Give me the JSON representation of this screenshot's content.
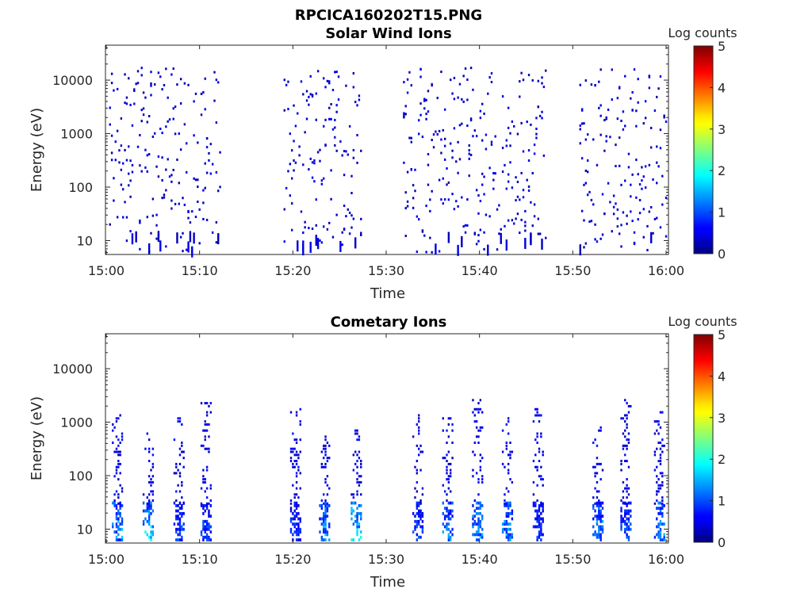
{
  "figure": {
    "title": "RPCICA160202T15.PNG"
  },
  "chart_data": [
    {
      "type": "heatmap",
      "title": "Solar Wind Ions",
      "xlabel": "Time",
      "ylabel": "Energy (eV)",
      "x_ticks": [
        "15:00",
        "15:10",
        "15:20",
        "15:30",
        "15:40",
        "15:50",
        "16:00"
      ],
      "x_range": [
        "15:00",
        "16:00"
      ],
      "y_ticks": [
        "10",
        "100",
        "1000",
        "10000"
      ],
      "y_scale": "log",
      "y_range": [
        5.5,
        45000
      ],
      "colorbar": {
        "label": "Log counts",
        "ticks": [
          "0",
          "1",
          "2",
          "3",
          "4",
          "5"
        ],
        "range": [
          0,
          5
        ],
        "colormap": "jet"
      },
      "active_intervals_minutes": [
        [
          0.3,
          12.2
        ],
        [
          19.0,
          27.2
        ],
        [
          31.8,
          47.2
        ],
        [
          50.7,
          60.0
        ]
      ],
      "energy_extent_eV": [
        6,
        17000
      ],
      "typical_log_counts": [
        0.2,
        0.6
      ]
    },
    {
      "type": "heatmap",
      "title": "Cometary Ions",
      "xlabel": "Time",
      "ylabel": "Energy (eV)",
      "x_ticks": [
        "15:00",
        "15:10",
        "15:20",
        "15:30",
        "15:40",
        "15:50",
        "16:00"
      ],
      "x_range": [
        "15:00",
        "16:00"
      ],
      "y_ticks": [
        "10",
        "100",
        "1000",
        "10000"
      ],
      "y_scale": "log",
      "y_range": [
        5.5,
        45000
      ],
      "colorbar": {
        "label": "Log counts",
        "ticks": [
          "0",
          "1",
          "2",
          "3",
          "4",
          "5"
        ],
        "range": [
          0,
          5
        ],
        "colormap": "jet"
      },
      "bursts": [
        {
          "t": 1.2,
          "top": 1600,
          "log_counts_low": 1.5
        },
        {
          "t": 4.5,
          "top": 900,
          "log_counts_low": 1.8
        },
        {
          "t": 7.8,
          "top": 1200,
          "log_counts_low": 1.0
        },
        {
          "t": 10.7,
          "top": 2300,
          "log_counts_low": 1.0
        },
        {
          "t": 20.3,
          "top": 1900,
          "log_counts_low": 1.0
        },
        {
          "t": 23.4,
          "top": 600,
          "log_counts_low": 1.5
        },
        {
          "t": 26.8,
          "top": 900,
          "log_counts_low": 1.9
        },
        {
          "t": 33.4,
          "top": 1400,
          "log_counts_low": 1.0
        },
        {
          "t": 36.6,
          "top": 1500,
          "log_counts_low": 1.4
        },
        {
          "t": 39.8,
          "top": 2600,
          "log_counts_low": 1.6
        },
        {
          "t": 43.0,
          "top": 1700,
          "log_counts_low": 1.5
        },
        {
          "t": 46.3,
          "top": 2100,
          "log_counts_low": 1.0
        },
        {
          "t": 52.7,
          "top": 1000,
          "log_counts_low": 1.4
        },
        {
          "t": 55.7,
          "top": 2600,
          "log_counts_low": 1.1
        },
        {
          "t": 59.3,
          "top": 1700,
          "log_counts_low": 1.5
        }
      ]
    }
  ]
}
